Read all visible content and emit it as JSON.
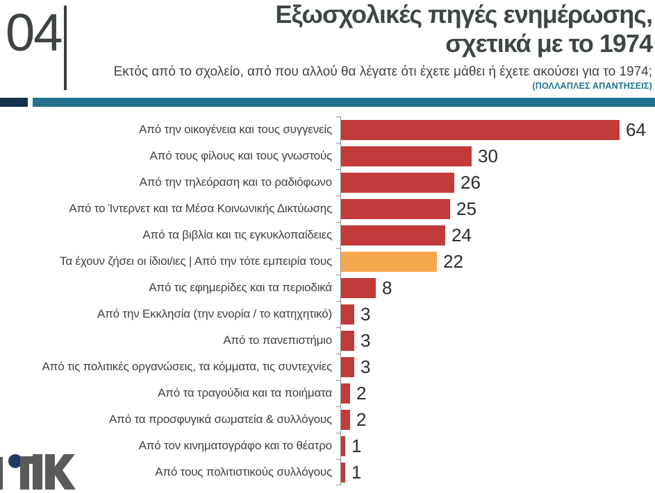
{
  "slide": {
    "number": "04",
    "title_line1": "Εξωσχολικές πηγές ενημέρωσης,",
    "title_line2": "σχετικά με το 1974",
    "subtitle": "Εκτός από το σχολείο, από που αλλού θα λέγατε ότι έχετε μάθει ή έχετε ακούσει για το 1974;",
    "note": "(ΠΟΛΛΑΠΛΕΣ ΑΠΑΝΤΗΣΕΙΣ)"
  },
  "colors": {
    "bar_red": "#c23b3a",
    "bar_orange": "#f6a84f",
    "teal": "#20708f",
    "navy": "#14304d",
    "title_text": "#3e4743",
    "logo_gray": "#595a5c",
    "logo_navy": "#1c3a64"
  },
  "chart_data": {
    "type": "bar",
    "orientation": "horizontal",
    "title": "Εξωσχολικές πηγές ενημέρωσης, σχετικά με το 1974",
    "question": "Εκτός από το σχολείο, από που αλλού θα λέγατε ότι έχετε μάθει ή έχετε ακούσει για το 1974;",
    "annotation": "(ΠΟΛΛΑΠΛΕΣ ΑΠΑΝΤΗΣΕΙΣ)",
    "categories": [
      "Από την οικογένεια και τους συγγενείς",
      "Από τους φίλους και τους γνωστούς",
      "Από την τηλεόραση και το ραδιόφωνο",
      "Από το Ίντερνετ και τα Μέσα Κοινωνικής Δικτύωσης",
      "Από τα βιβλία και τις εγκυκλοπαίδειες",
      "Τα έχουν ζήσει οι ίδιοι/ιες | Από την τότε εμπειρία τους",
      "Από τις εφημερίδες και τα περιοδικά",
      "Από την Εκκλησία (την ενορία / το κατηχητικό)",
      "Από το πανεπιστήμιο",
      "Από τις πολιτικές οργανώσεις,  τα κόμματα, τις συντεχνίες",
      "Από τα τραγούδια και τα ποιήματα",
      "Από τα προσφυγικά σωματεία & συλλόγους",
      "Από τον κινηματογράφο και το θέατρο",
      "Από τους πολιτιστικούς συλλόγους"
    ],
    "values": [
      64,
      30,
      26,
      25,
      24,
      22,
      8,
      3,
      3,
      3,
      2,
      2,
      1,
      1
    ],
    "highlight_index": 5,
    "bar_color": "#c23b3a",
    "highlight_color": "#f6a84f",
    "xlim": [
      0,
      64
    ],
    "value_labels_shown": true,
    "grid": false,
    "legend": false
  }
}
